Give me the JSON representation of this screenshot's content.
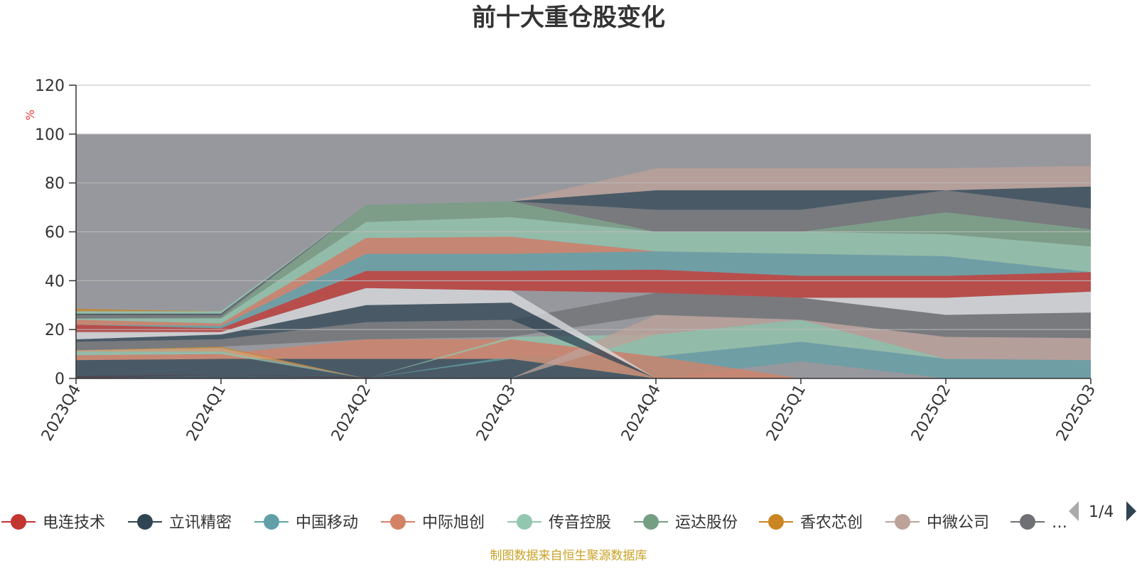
{
  "chart_data": {
    "type": "area",
    "title": "前十大重仓股变化",
    "ylabel": "%",
    "ylim": [
      0,
      120
    ],
    "yticks": [
      0,
      20,
      40,
      60,
      80,
      100,
      120
    ],
    "categories": [
      "2023Q4",
      "2024Q1",
      "2024Q2",
      "2024Q3",
      "2024Q4",
      "2025Q1",
      "2025Q2",
      "2025Q3"
    ],
    "background_band": {
      "from": 0,
      "to": 100,
      "color": "#97989d"
    },
    "bands": [
      {
        "color": "#c23531",
        "low": [
          0,
          1.5,
          0,
          0,
          0,
          0,
          0,
          0
        ],
        "high": [
          1,
          1.5,
          0.5,
          0,
          0,
          0,
          0,
          0
        ]
      },
      {
        "color": "#2f4554",
        "low": [
          0,
          0,
          0,
          0,
          0,
          7,
          0,
          0
        ],
        "high": [
          7.5,
          8,
          8,
          8,
          0,
          7,
          0,
          0
        ]
      },
      {
        "color": "#61a0a8",
        "low": [
          0,
          0,
          0,
          8,
          0,
          7,
          0,
          0
        ],
        "high": [
          0,
          0,
          0,
          9,
          9,
          15,
          8,
          7.5
        ]
      },
      {
        "color": "#d48265",
        "low": [
          7.5,
          8,
          8,
          8,
          0,
          0,
          0,
          0
        ],
        "high": [
          9.5,
          10,
          16,
          16,
          9,
          0,
          0,
          0
        ]
      },
      {
        "color": "#91c7ae",
        "low": [
          9.5,
          10,
          0,
          16,
          9,
          15,
          8,
          0
        ],
        "high": [
          11,
          11,
          0,
          17,
          18,
          24,
          8,
          0
        ]
      },
      {
        "color": "#d4a373",
        "low": [
          11,
          11,
          0,
          0,
          0,
          0,
          0,
          0
        ],
        "high": [
          11.5,
          12.5,
          0,
          0,
          0,
          0,
          0,
          0
        ]
      },
      {
        "color": "#ca8622",
        "low": [
          11.5,
          12.5,
          0,
          0,
          0,
          0,
          0,
          0
        ],
        "high": [
          11.5,
          13,
          0,
          0,
          0,
          0,
          0,
          0
        ]
      },
      {
        "color": "#bda29a",
        "low": [
          0,
          0,
          0,
          0,
          18,
          24,
          8,
          7.5
        ],
        "high": [
          0,
          0,
          0,
          0,
          26,
          24,
          17,
          16.5
        ]
      },
      {
        "color": "#6e7074",
        "low": [
          11.5,
          13,
          16,
          17,
          26,
          24,
          17,
          16.5
        ],
        "high": [
          15,
          16,
          23,
          24,
          35,
          33,
          26,
          27
        ]
      },
      {
        "color": "#dcdde2",
        "low": [
          0,
          0,
          0,
          0,
          0,
          33,
          26,
          27
        ],
        "high": [
          0,
          0,
          0,
          0,
          0,
          33,
          33,
          35.5
        ]
      },
      {
        "color": "#2f4554",
        "low": [
          15,
          16,
          23,
          24,
          0,
          0,
          0,
          0
        ],
        "high": [
          16,
          18,
          30,
          31,
          0,
          0,
          0,
          0
        ]
      },
      {
        "color": "#dcdde2",
        "low": [
          16,
          18,
          30,
          31,
          0,
          0,
          0,
          0
        ],
        "high": [
          19,
          19,
          37,
          36,
          0,
          0,
          0,
          0
        ]
      },
      {
        "color": "#c23531",
        "low": [
          19,
          19,
          37,
          36,
          35,
          33,
          33,
          35.5
        ],
        "high": [
          22,
          20.5,
          44,
          44,
          44.5,
          42,
          42,
          43.5
        ]
      },
      {
        "color": "#61a0a8",
        "low": [
          22,
          20.5,
          44,
          44,
          44.5,
          42,
          42,
          43.5
        ],
        "high": [
          22,
          21.5,
          51,
          51,
          52,
          51,
          50,
          43.5
        ]
      },
      {
        "color": "#d48265",
        "low": [
          22,
          21.5,
          51,
          51,
          52,
          51,
          50,
          43.5
        ],
        "high": [
          24,
          22.5,
          57.5,
          58,
          52,
          51,
          50,
          43.5
        ]
      },
      {
        "color": "#91c7ae",
        "low": [
          24,
          22.5,
          57.5,
          58,
          52,
          51,
          50,
          43.5
        ],
        "high": [
          24.5,
          24.5,
          64,
          66,
          60,
          60,
          59,
          54
        ]
      },
      {
        "color": "#749f83",
        "low": [
          24.5,
          24.5,
          64,
          66,
          60,
          60,
          59,
          54
        ],
        "high": [
          24.5,
          25,
          71,
          72.5,
          60,
          60,
          68,
          61
        ]
      },
      {
        "color": "#6e7074",
        "low": [
          24.5,
          25,
          71,
          72.5,
          60,
          60,
          68,
          61
        ],
        "high": [
          26,
          26,
          71,
          72.5,
          69,
          69,
          77,
          69.5
        ]
      },
      {
        "color": "#2f4554",
        "low": [
          26,
          26,
          71,
          72.5,
          69,
          69,
          77,
          69.5
        ],
        "high": [
          26.5,
          26.5,
          71,
          72.5,
          77,
          77,
          77,
          78.5
        ]
      },
      {
        "color": "#bda29a",
        "low": [
          26.5,
          26.5,
          71,
          72.5,
          77,
          77,
          77,
          78.5
        ],
        "high": [
          26.5,
          26.5,
          71,
          72.5,
          86,
          86,
          86,
          87
        ]
      },
      {
        "color": "#91c7ae",
        "low": [
          26.5,
          26.5,
          71,
          72.5,
          86,
          86,
          86,
          87
        ],
        "high": [
          27.5,
          27.5,
          71,
          72.5,
          86,
          86,
          86,
          87
        ]
      },
      {
        "color": "#ca8622",
        "low": [
          27.5,
          27.5,
          71,
          72.5,
          86,
          86,
          86,
          87
        ],
        "high": [
          28.5,
          27.5,
          71,
          72.5,
          86,
          86,
          86,
          87
        ]
      }
    ],
    "legend": [
      {
        "name": "电连技术",
        "color": "#c23531"
      },
      {
        "name": "立讯精密",
        "color": "#2f4554"
      },
      {
        "name": "中国移动",
        "color": "#61a0a8"
      },
      {
        "name": "中际旭创",
        "color": "#d48265"
      },
      {
        "name": "传音控股",
        "color": "#91c7ae"
      },
      {
        "name": "运达股份",
        "color": "#749f83"
      },
      {
        "name": "香农芯创",
        "color": "#ca8622"
      },
      {
        "name": "中微公司",
        "color": "#bda29a"
      },
      {
        "name": "…",
        "color": "#6e7074"
      }
    ],
    "legend_page": "1/4",
    "source": "制图数据来自恒生聚源数据库"
  }
}
